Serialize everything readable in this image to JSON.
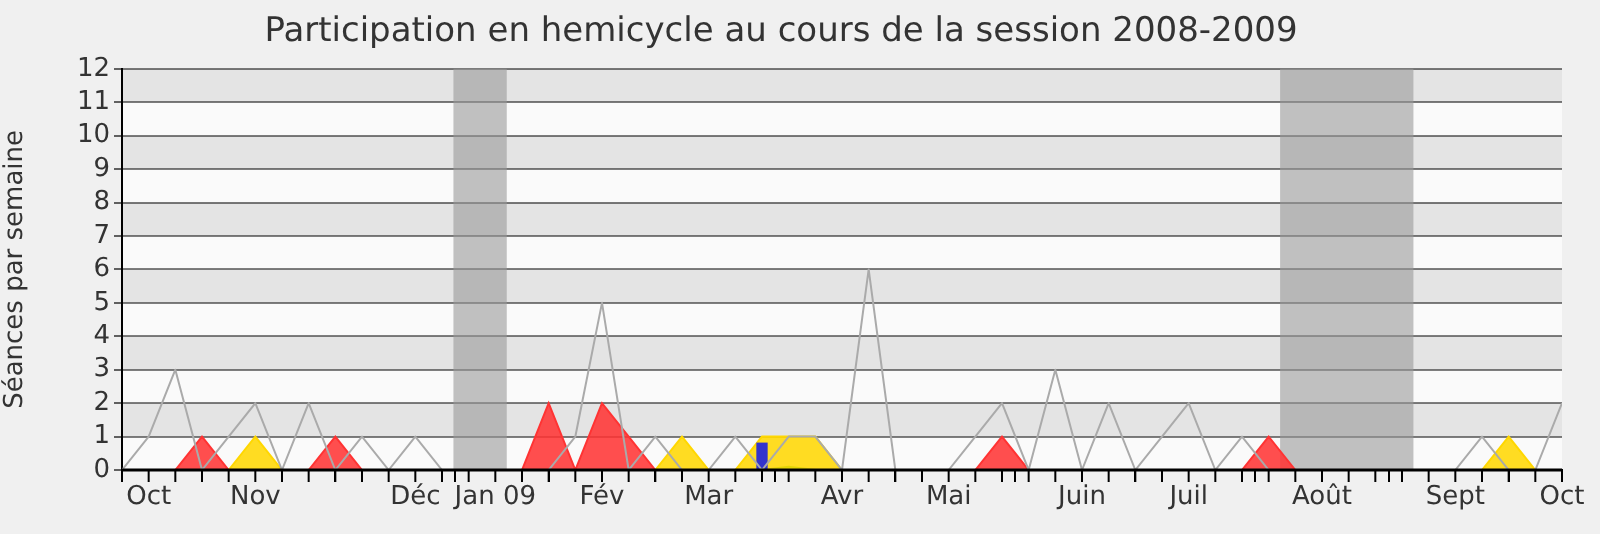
{
  "chart_data": {
    "type": "line",
    "title": "Participation en hemicycle au cours de la session 2008-2009",
    "ylabel": "Séances par semaine",
    "x": [
      "2008-09-29",
      "2008-10-06",
      "2008-10-13",
      "2008-10-20",
      "2008-10-27",
      "2008-11-03",
      "2008-11-10",
      "2008-11-17",
      "2008-11-24",
      "2008-12-01",
      "2008-12-08",
      "2008-12-15",
      "2008-12-22",
      "2008-12-29",
      "2009-01-05",
      "2009-01-12",
      "2009-01-19",
      "2009-01-26",
      "2009-02-02",
      "2009-02-09",
      "2009-02-16",
      "2009-02-23",
      "2009-03-02",
      "2009-03-09",
      "2009-03-16",
      "2009-03-23",
      "2009-03-30",
      "2009-04-06",
      "2009-04-13",
      "2009-04-20",
      "2009-04-27",
      "2009-05-04",
      "2009-05-11",
      "2009-05-18",
      "2009-05-25",
      "2009-06-01",
      "2009-06-08",
      "2009-06-15",
      "2009-06-22",
      "2009-06-29",
      "2009-07-06",
      "2009-07-13",
      "2009-07-20",
      "2009-07-27",
      "2009-08-03",
      "2009-08-10",
      "2009-08-17",
      "2009-08-24",
      "2009-08-31",
      "2009-09-07",
      "2009-09-14",
      "2009-09-21",
      "2009-09-28",
      "2009-10-05",
      "2009-10-12"
    ],
    "series": [
      {
        "type": "area",
        "color": "#ff3333",
        "values": [
          0,
          0,
          0,
          1,
          0,
          0,
          0,
          0,
          1,
          0,
          0,
          0,
          0,
          0,
          0,
          0,
          2,
          0,
          2,
          1,
          0,
          0,
          0,
          0,
          0,
          0,
          0,
          0,
          0,
          0,
          0,
          0,
          0,
          1,
          0,
          0,
          0,
          0,
          0,
          0,
          0,
          0,
          0,
          1,
          0,
          0,
          0,
          0,
          0,
          0,
          0,
          0,
          0,
          0,
          0
        ]
      },
      {
        "type": "area",
        "color": "#ffd700",
        "values": [
          0,
          0,
          0,
          0,
          0,
          1,
          0,
          0,
          0,
          0,
          0,
          0,
          0,
          0,
          0,
          0,
          0,
          0,
          0,
          0,
          0,
          1,
          0,
          0,
          1,
          1,
          1,
          0,
          0,
          0,
          0,
          0,
          0,
          0,
          0,
          0,
          0,
          0,
          0,
          0,
          0,
          0,
          0,
          0,
          0,
          0,
          0,
          0,
          0,
          0,
          0,
          0,
          1,
          0,
          0
        ]
      },
      {
        "type": "area",
        "color": "#33cc33",
        "values": [
          0,
          0,
          0,
          0,
          0,
          0,
          0,
          0,
          0,
          0,
          0,
          0,
          0,
          0,
          0,
          0,
          0,
          0,
          0,
          0,
          0,
          0,
          0,
          0,
          0,
          0.1,
          0,
          0,
          0,
          0,
          0,
          0,
          0,
          0,
          0,
          0,
          0,
          0,
          0,
          0,
          0,
          0,
          0,
          0,
          0,
          0,
          0,
          0,
          0,
          0,
          0,
          0,
          0,
          0,
          0
        ]
      },
      {
        "type": "bar",
        "color": "#3333cc",
        "values": [
          null,
          null,
          null,
          null,
          null,
          null,
          null,
          null,
          null,
          null,
          null,
          null,
          null,
          null,
          null,
          null,
          null,
          null,
          null,
          null,
          null,
          null,
          null,
          null,
          0.8,
          null,
          null,
          null,
          null,
          null,
          null,
          null,
          null,
          null,
          null,
          null,
          null,
          null,
          null,
          null,
          null,
          null,
          null,
          null,
          null,
          null,
          null,
          null,
          null,
          null,
          null,
          null,
          null,
          null,
          null
        ]
      },
      {
        "color": "#aaaaaa",
        "values": [
          0,
          1,
          3,
          0,
          1,
          2,
          0,
          2,
          0,
          1,
          0,
          1,
          0,
          0,
          0,
          0,
          0,
          1,
          5,
          0,
          1,
          0,
          0,
          1,
          0,
          1,
          1,
          0,
          6,
          0,
          0,
          0,
          1,
          2,
          0,
          3,
          0,
          2,
          0,
          1,
          2,
          0,
          1,
          0,
          0,
          0,
          0,
          0,
          0,
          0,
          0,
          1,
          0,
          0,
          2
        ]
      }
    ],
    "xlim": [
      "2008-09-29",
      "2009-10-12"
    ],
    "xticks": [
      {
        "value": "2008-10-06",
        "label": "Oct"
      },
      {
        "value": "2008-11-03",
        "label": "Nov"
      },
      {
        "value": "2008-12-15",
        "label": "Déc"
      },
      {
        "value": "2009-01-05",
        "label": "Jan 09"
      },
      {
        "value": "2009-02-02",
        "label": "Fév"
      },
      {
        "value": "2009-03-02",
        "label": "Mar"
      },
      {
        "value": "2009-04-06",
        "label": "Avr"
      },
      {
        "value": "2009-05-04",
        "label": "Mai"
      },
      {
        "value": "2009-06-08",
        "label": "Juin"
      },
      {
        "value": "2009-07-06",
        "label": "Juil"
      },
      {
        "value": "2009-08-10",
        "label": "Août"
      },
      {
        "value": "2009-09-14",
        "label": "Sept"
      },
      {
        "value": "2009-10-12",
        "label": "Oct"
      }
    ],
    "ylim": [
      0,
      12
    ],
    "yticks": [
      0,
      1,
      2,
      3,
      4,
      5,
      6,
      7,
      8,
      9,
      10,
      11,
      12
    ],
    "bands": [
      {
        "axis": "y",
        "from": 1,
        "to": 2,
        "color": "#e4e4e4"
      },
      {
        "axis": "y",
        "from": 3,
        "to": 4,
        "color": "#e4e4e4"
      },
      {
        "axis": "y",
        "from": 5,
        "to": 6,
        "color": "#e4e4e4"
      },
      {
        "axis": "y",
        "from": 7,
        "to": 8,
        "color": "#e4e4e4"
      },
      {
        "axis": "y",
        "from": 9,
        "to": 10,
        "color": "#e4e4e4"
      },
      {
        "axis": "y",
        "from": 11,
        "to": 12,
        "color": "#e4e4e4"
      },
      {
        "axis": "x",
        "from": "2008-12-25",
        "to": "2009-01-08",
        "color": "#999999"
      },
      {
        "axis": "x",
        "from": "2009-07-30",
        "to": "2009-09-03",
        "color": "#999999"
      }
    ],
    "grid": "y",
    "legend": false
  }
}
